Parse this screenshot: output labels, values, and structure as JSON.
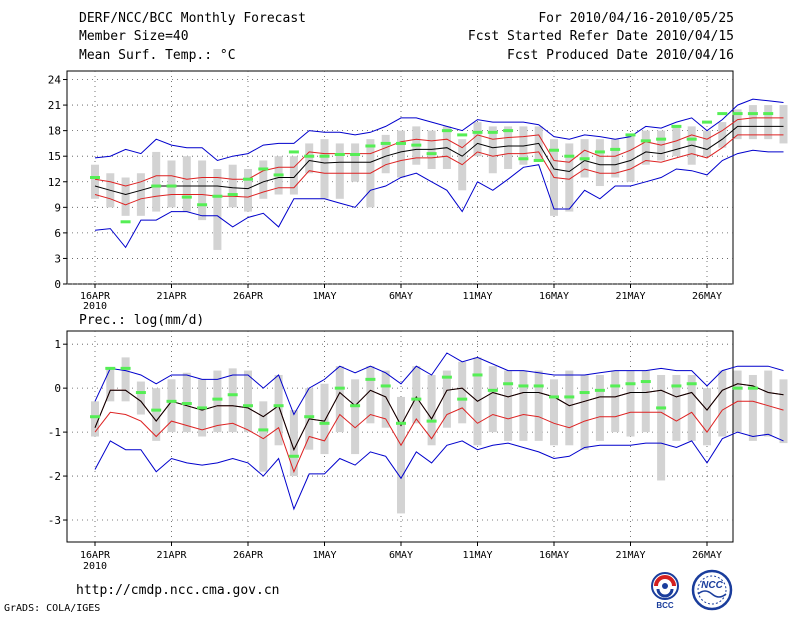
{
  "header": {
    "title": "DERF/NCC/BCC Monthly Forecast",
    "member_size": "Member Size=40",
    "variable1": "Mean Surf. Temp.: °C",
    "period": "For 2010/04/16-2010/05/25",
    "started": "Fcst Started Refer Date 2010/04/15",
    "produced": "Fcst Produced Date 2010/04/16"
  },
  "footer": {
    "url": "http://cmdp.ncc.cma.gov.cn",
    "grads": "GrADS: COLA/IGES"
  },
  "logos": {
    "bcc": "BCC",
    "ncc": "NCC"
  },
  "colors": {
    "ensemble_bar": "#d3d3d3",
    "observed": "#55ee55",
    "mean": "#000000",
    "inner_band": "#dd2222",
    "outer_band": "#0000cc",
    "grid": "#555555"
  },
  "chart_data": [
    {
      "type": "line",
      "title": "Mean Surf. Temp.: °C",
      "x_labels": [
        "16APR",
        "21APR",
        "26APR",
        "1MAY",
        "6MAY",
        "11MAY",
        "16MAY",
        "21MAY",
        "26MAY"
      ],
      "year_label": "2010",
      "ylim": [
        0,
        25
      ],
      "yticks": [
        0,
        3,
        6,
        9,
        12,
        15,
        18,
        21,
        24
      ],
      "ytick_labels": [
        "0",
        "3",
        "6",
        "9",
        "12",
        "15",
        "18",
        "21",
        "24"
      ],
      "series": {
        "ensemble_mean": [
          11.5,
          11.0,
          10.5,
          11.0,
          11.5,
          11.5,
          11.5,
          11.5,
          11.5,
          11.3,
          11.2,
          12.0,
          12.5,
          12.5,
          14.5,
          14.2,
          14.3,
          14.3,
          14.3,
          15.0,
          15.5,
          15.8,
          15.8,
          16.0,
          15.0,
          16.5,
          16.0,
          16.2,
          16.2,
          16.5,
          13.5,
          13.2,
          14.5,
          14.0,
          14.0,
          14.5,
          15.5,
          15.3,
          15.8,
          16.3,
          15.8,
          17.0,
          18.5,
          18.5,
          18.5,
          18.5
        ],
        "outer_upper": [
          14.8,
          15.0,
          15.8,
          15.3,
          17.0,
          16.3,
          16.0,
          16.0,
          14.5,
          15.0,
          15.3,
          16.3,
          16.5,
          16.5,
          18.0,
          17.8,
          17.8,
          17.5,
          17.8,
          18.5,
          19.5,
          19.5,
          19.0,
          18.5,
          18.0,
          19.3,
          19.0,
          19.0,
          19.0,
          18.7,
          17.3,
          17.0,
          17.5,
          17.3,
          17.0,
          17.3,
          18.5,
          18.3,
          19.0,
          19.5,
          18.0,
          19.3,
          21.0,
          21.7,
          21.5,
          21.3
        ],
        "inner_upper": [
          12.3,
          12.0,
          11.5,
          12.0,
          12.7,
          12.7,
          12.3,
          12.5,
          12.5,
          12.3,
          12.3,
          13.3,
          13.7,
          13.7,
          15.5,
          15.3,
          15.3,
          15.3,
          15.3,
          16.0,
          16.7,
          17.0,
          16.8,
          17.0,
          16.0,
          17.5,
          17.0,
          17.2,
          17.3,
          17.5,
          14.5,
          14.3,
          15.7,
          15.0,
          15.0,
          15.7,
          16.7,
          16.3,
          16.8,
          17.5,
          17.0,
          18.0,
          19.3,
          19.5,
          19.5,
          19.5
        ],
        "inner_lower": [
          10.5,
          10.0,
          9.3,
          10.0,
          10.3,
          10.5,
          10.5,
          10.5,
          10.3,
          10.3,
          10.2,
          10.8,
          11.3,
          11.3,
          13.3,
          13.0,
          13.0,
          13.0,
          13.0,
          14.0,
          14.5,
          14.8,
          14.8,
          15.0,
          14.0,
          15.5,
          15.0,
          15.3,
          15.3,
          15.5,
          12.5,
          12.3,
          13.5,
          13.0,
          13.0,
          13.5,
          14.5,
          14.3,
          14.8,
          15.3,
          14.8,
          16.0,
          17.5,
          17.5,
          17.5,
          17.5
        ],
        "outer_lower": [
          6.3,
          6.5,
          4.3,
          7.5,
          7.5,
          8.5,
          8.5,
          8.0,
          8.0,
          6.7,
          7.8,
          8.3,
          6.7,
          10.0,
          10.0,
          10.0,
          9.5,
          9.0,
          11.0,
          11.5,
          12.5,
          13.0,
          12.0,
          11.0,
          8.5,
          12.0,
          11.0,
          12.3,
          13.7,
          14.0,
          8.8,
          8.8,
          11.0,
          10.0,
          11.5,
          11.5,
          12.0,
          12.5,
          13.5,
          13.3,
          12.8,
          14.5,
          15.3,
          15.7,
          15.5,
          15.5
        ],
        "observed": [
          12.5,
          null,
          7.3,
          null,
          11.5,
          11.5,
          10.2,
          9.3,
          10.3,
          10.5,
          12.3,
          13.5,
          12.8,
          15.5,
          15.0,
          15.0,
          15.2,
          15.2,
          16.2,
          16.5,
          16.5,
          16.3,
          15.3,
          18.0,
          17.5,
          17.8,
          17.8,
          18.0,
          14.7,
          14.5,
          15.7,
          15.0,
          14.7,
          15.5,
          15.8,
          17.5,
          16.8,
          17.0,
          18.5,
          17.0,
          19.0,
          20.0,
          20.0,
          20.0,
          20.0,
          null
        ],
        "ensemble_bar_low": [
          10.0,
          9.0,
          8.0,
          8.0,
          8.5,
          9.0,
          8.5,
          7.5,
          4.0,
          9.0,
          8.5,
          10.0,
          10.5,
          10.5,
          13.0,
          10.0,
          10.0,
          12.0,
          9.0,
          13.0,
          12.5,
          14.0,
          13.5,
          13.5,
          11.0,
          15.0,
          13.0,
          13.5,
          14.0,
          14.5,
          8.0,
          8.5,
          12.5,
          11.5,
          12.5,
          12.0,
          14.0,
          14.5,
          15.0,
          14.0,
          15.0,
          16.0,
          17.0,
          17.0,
          17.0,
          16.5
        ],
        "ensemble_bar_high": [
          14.0,
          13.0,
          12.5,
          13.0,
          15.5,
          14.5,
          15.0,
          14.5,
          13.5,
          14.0,
          13.5,
          14.5,
          15.0,
          15.0,
          16.5,
          17.0,
          16.5,
          16.5,
          17.0,
          17.5,
          18.0,
          18.5,
          18.0,
          18.5,
          17.0,
          19.0,
          18.5,
          18.5,
          18.5,
          18.5,
          17.0,
          16.5,
          17.0,
          17.0,
          17.0,
          17.5,
          18.0,
          18.0,
          18.5,
          18.5,
          18.0,
          19.0,
          20.5,
          21.0,
          21.0,
          21.0
        ]
      }
    },
    {
      "type": "line",
      "title": "Prec.: log(mm/d)",
      "x_labels": [
        "16APR",
        "21APR",
        "26APR",
        "1MAY",
        "6MAY",
        "11MAY",
        "16MAY",
        "21MAY",
        "26MAY"
      ],
      "year_label": "2010",
      "ylim": [
        -3.5,
        1.3
      ],
      "yticks": [
        -3,
        -2,
        -1,
        0,
        1
      ],
      "ytick_labels": [
        "-3",
        "-2",
        "-1",
        "0",
        "1"
      ],
      "series": {
        "ensemble_mean": [
          -0.9,
          -0.05,
          -0.05,
          -0.3,
          -0.75,
          -0.3,
          -0.4,
          -0.5,
          -0.4,
          -0.4,
          -0.45,
          -0.65,
          -0.4,
          -1.4,
          -0.7,
          -0.75,
          -0.1,
          -0.4,
          -0.05,
          -0.2,
          -0.85,
          -0.2,
          -0.7,
          -0.05,
          0.0,
          -0.3,
          -0.1,
          -0.2,
          -0.1,
          -0.1,
          -0.2,
          -0.4,
          -0.3,
          -0.2,
          -0.2,
          -0.1,
          -0.1,
          -0.05,
          -0.2,
          -0.1,
          -0.5,
          -0.05,
          0.1,
          0.05,
          -0.1,
          -0.15
        ],
        "outer_upper": [
          -0.3,
          0.45,
          0.4,
          0.3,
          0.1,
          0.3,
          0.3,
          0.2,
          0.2,
          0.3,
          0.3,
          0.0,
          0.3,
          -0.6,
          0.0,
          0.2,
          0.5,
          0.35,
          0.5,
          0.35,
          0.1,
          0.5,
          0.3,
          0.8,
          0.6,
          0.7,
          0.55,
          0.4,
          0.4,
          0.35,
          0.3,
          0.3,
          0.3,
          0.35,
          0.4,
          0.4,
          0.4,
          0.45,
          0.4,
          0.4,
          0.05,
          0.4,
          0.5,
          0.5,
          0.5,
          0.4
        ],
        "inner_upper": [
          -0.9,
          -0.05,
          -0.05,
          -0.3,
          -0.75,
          -0.3,
          -0.4,
          -0.5,
          -0.4,
          -0.4,
          -0.45,
          -0.65,
          -0.4,
          -1.4,
          -0.7,
          -0.75,
          -0.1,
          -0.4,
          -0.05,
          -0.2,
          -0.85,
          -0.2,
          -0.7,
          -0.05,
          0.0,
          -0.3,
          -0.1,
          -0.2,
          -0.1,
          -0.1,
          -0.2,
          -0.4,
          -0.3,
          -0.2,
          -0.2,
          -0.1,
          -0.1,
          -0.05,
          -0.2,
          -0.1,
          -0.5,
          -0.05,
          0.1,
          0.05,
          -0.1,
          -0.15
        ],
        "inner_lower": [
          -1.0,
          -0.55,
          -0.6,
          -0.75,
          -1.1,
          -0.75,
          -0.85,
          -0.95,
          -0.85,
          -0.8,
          -0.95,
          -1.15,
          -0.9,
          -1.9,
          -1.1,
          -1.2,
          -0.6,
          -0.9,
          -0.6,
          -0.7,
          -1.3,
          -0.7,
          -1.15,
          -0.6,
          -0.45,
          -0.8,
          -0.6,
          -0.7,
          -0.6,
          -0.65,
          -0.8,
          -0.9,
          -0.75,
          -0.65,
          -0.65,
          -0.55,
          -0.55,
          -0.55,
          -0.75,
          -0.55,
          -1.0,
          -0.5,
          -0.3,
          -0.3,
          -0.4,
          -0.5
        ],
        "outer_lower": [
          -1.85,
          -1.2,
          -1.4,
          -1.4,
          -1.9,
          -1.6,
          -1.7,
          -1.75,
          -1.7,
          -1.6,
          -1.7,
          -2.0,
          -1.6,
          -2.75,
          -1.95,
          -1.95,
          -1.6,
          -1.75,
          -1.45,
          -1.55,
          -2.05,
          -1.45,
          -1.7,
          -1.3,
          -1.2,
          -1.4,
          -1.3,
          -1.25,
          -1.35,
          -1.45,
          -1.6,
          -1.55,
          -1.35,
          -1.3,
          -1.3,
          -1.3,
          -1.25,
          -1.25,
          -1.35,
          -1.2,
          -1.7,
          -1.15,
          -1.0,
          -1.1,
          -1.05,
          -1.2
        ],
        "observed": [
          -0.65,
          0.45,
          0.45,
          -0.1,
          -0.5,
          -0.3,
          -0.35,
          -0.45,
          -0.25,
          -0.15,
          -0.4,
          -0.95,
          -0.4,
          -1.55,
          -0.65,
          -0.8,
          0.0,
          -0.4,
          0.2,
          0.05,
          -0.8,
          -0.25,
          -0.75,
          0.25,
          -0.25,
          0.3,
          -0.05,
          0.1,
          0.05,
          0.05,
          -0.2,
          -0.2,
          -0.1,
          -0.05,
          0.05,
          0.1,
          0.15,
          -0.45,
          0.05,
          0.1,
          null,
          null,
          0.0,
          0.0,
          null,
          null
        ],
        "ensemble_bar_low": [
          -1.1,
          -0.3,
          -0.3,
          -0.6,
          -1.2,
          -1.0,
          -1.0,
          -1.1,
          -1.0,
          -1.0,
          -1.0,
          -1.9,
          -1.3,
          -2.0,
          -1.4,
          -1.5,
          -1.0,
          -1.5,
          -0.8,
          -0.9,
          -2.85,
          -0.8,
          -1.3,
          -0.9,
          -0.8,
          -1.3,
          -1.0,
          -1.2,
          -1.2,
          -1.2,
          -1.3,
          -1.3,
          -1.4,
          -1.2,
          -1.0,
          -1.1,
          -1.0,
          -2.1,
          -1.2,
          -1.2,
          -1.3,
          -1.1,
          -1.0,
          -1.2,
          -1.1,
          -1.25
        ],
        "ensemble_bar_high": [
          -0.3,
          0.45,
          0.7,
          0.15,
          0.0,
          0.2,
          0.35,
          0.2,
          0.4,
          0.45,
          0.4,
          -0.3,
          0.3,
          -0.5,
          0.0,
          0.1,
          0.5,
          0.2,
          0.5,
          0.4,
          -0.2,
          0.5,
          0.3,
          0.4,
          0.6,
          0.7,
          0.5,
          0.4,
          0.4,
          0.4,
          0.2,
          0.4,
          0.3,
          0.3,
          0.4,
          0.4,
          0.4,
          0.3,
          0.3,
          0.3,
          0.0,
          0.4,
          0.4,
          0.3,
          0.4,
          0.2
        ]
      }
    }
  ]
}
